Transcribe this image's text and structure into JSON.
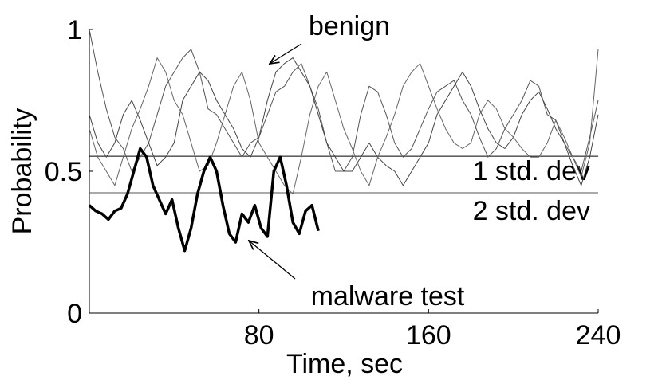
{
  "chart_data": {
    "type": "line",
    "x_label": "Time, sec",
    "y_label": "Probability",
    "xlim": [
      0,
      240
    ],
    "xticks": [
      80,
      160,
      240
    ],
    "ylim": [
      0,
      1
    ],
    "yticks": [
      0,
      0.5,
      1
    ],
    "series": [
      {
        "color": "#555555",
        "line_width": 1,
        "x": [
          0,
          4,
          8,
          12,
          16,
          20,
          24,
          28,
          32,
          36,
          40,
          44,
          48,
          52,
          56,
          60,
          64,
          68,
          72,
          76,
          80,
          84,
          88,
          92,
          96,
          100,
          104,
          108,
          112,
          116,
          120,
          124,
          128,
          132,
          136,
          140,
          144,
          148,
          152,
          156,
          160,
          164,
          168,
          172,
          176,
          180,
          184,
          188,
          192,
          196,
          200,
          204,
          208,
          212,
          216,
          220,
          224,
          228,
          232,
          236,
          240
        ],
        "values": [
          1.0,
          0.85,
          0.72,
          0.62,
          0.58,
          0.5,
          0.55,
          0.6,
          0.7,
          0.8,
          0.85,
          0.9,
          0.93,
          0.85,
          0.72,
          0.7,
          0.65,
          0.6,
          0.55,
          0.6,
          0.62,
          0.7,
          0.78,
          0.8,
          0.85,
          0.88,
          0.8,
          0.72,
          0.6,
          0.5,
          0.5,
          0.55,
          0.7,
          0.8,
          0.78,
          0.7,
          0.6,
          0.55,
          0.58,
          0.65,
          0.72,
          0.78,
          0.8,
          0.82,
          0.75,
          0.7,
          0.62,
          0.55,
          0.58,
          0.65,
          0.7,
          0.75,
          0.82,
          0.8,
          0.7,
          0.68,
          0.6,
          0.55,
          0.5,
          0.62,
          0.75
        ]
      },
      {
        "color": "#444444",
        "line_width": 1,
        "x": [
          0,
          4,
          8,
          12,
          16,
          20,
          24,
          28,
          32,
          36,
          40,
          44,
          48,
          52,
          56,
          60,
          64,
          68,
          72,
          76,
          80,
          84,
          88,
          92,
          96,
          100,
          104,
          108,
          112,
          116,
          120,
          124,
          128,
          132,
          136,
          140,
          144,
          148,
          152,
          156,
          160,
          164,
          168,
          172,
          176,
          180,
          184,
          188,
          192,
          196,
          200,
          204,
          208,
          212,
          216,
          220,
          224,
          228,
          232,
          236,
          240
        ],
        "values": [
          0.7,
          0.6,
          0.55,
          0.6,
          0.7,
          0.75,
          0.68,
          0.6,
          0.52,
          0.55,
          0.6,
          0.75,
          0.8,
          0.85,
          0.82,
          0.75,
          0.7,
          0.65,
          0.58,
          0.55,
          0.62,
          0.75,
          0.85,
          0.88,
          0.9,
          0.85,
          0.8,
          0.7,
          0.6,
          0.55,
          0.5,
          0.5,
          0.55,
          0.6,
          0.55,
          0.52,
          0.5,
          0.45,
          0.5,
          0.55,
          0.6,
          0.7,
          0.75,
          0.8,
          0.85,
          0.8,
          0.72,
          0.65,
          0.6,
          0.58,
          0.62,
          0.7,
          0.75,
          0.78,
          0.72,
          0.65,
          0.6,
          0.52,
          0.45,
          0.55,
          0.7
        ]
      },
      {
        "color": "#666666",
        "line_width": 1,
        "x": [
          0,
          4,
          8,
          12,
          16,
          20,
          24,
          28,
          32,
          36,
          40,
          44,
          48,
          52,
          56,
          60,
          64,
          68,
          72,
          76,
          80,
          84,
          88,
          92,
          96,
          100,
          104,
          108,
          112,
          116,
          120,
          124,
          128,
          132,
          136,
          140,
          144,
          148,
          152,
          156,
          160,
          164,
          168,
          172,
          176,
          180,
          184,
          188,
          192,
          196,
          200,
          204,
          208,
          212,
          216,
          220,
          224,
          228,
          232,
          236,
          240
        ],
        "values": [
          0.65,
          0.55,
          0.5,
          0.45,
          0.55,
          0.65,
          0.72,
          0.8,
          0.9,
          0.85,
          0.75,
          0.7,
          0.6,
          0.5,
          0.52,
          0.6,
          0.7,
          0.8,
          0.85,
          0.75,
          0.6,
          0.55,
          0.5,
          0.45,
          0.42,
          0.55,
          0.7,
          0.8,
          0.85,
          0.75,
          0.65,
          0.58,
          0.5,
          0.45,
          0.55,
          0.62,
          0.7,
          0.8,
          0.85,
          0.88,
          0.8,
          0.72,
          0.65,
          0.6,
          0.58,
          0.6,
          0.7,
          0.75,
          0.72,
          0.65,
          0.62,
          0.58,
          0.55,
          0.55,
          0.6,
          0.68,
          0.62,
          0.55,
          0.48,
          0.6,
          0.93
        ]
      },
      {
        "color": "#000000",
        "line_width": 3.5,
        "x": [
          0,
          3,
          6,
          9,
          12,
          15,
          18,
          21,
          24,
          27,
          30,
          33,
          36,
          39,
          42,
          45,
          48,
          51,
          54,
          57,
          60,
          63,
          66,
          69,
          72,
          75,
          78,
          81,
          84,
          87,
          90,
          93,
          96,
          99,
          102,
          105,
          108
        ],
        "values": [
          0.38,
          0.36,
          0.35,
          0.33,
          0.36,
          0.37,
          0.42,
          0.5,
          0.58,
          0.55,
          0.45,
          0.4,
          0.35,
          0.4,
          0.3,
          0.22,
          0.3,
          0.42,
          0.5,
          0.55,
          0.5,
          0.38,
          0.28,
          0.25,
          0.35,
          0.32,
          0.38,
          0.3,
          0.27,
          0.5,
          0.55,
          0.45,
          0.32,
          0.28,
          0.36,
          0.38,
          0.29
        ]
      }
    ],
    "reference_lines": [
      {
        "value": 0.553,
        "label": "1 std. dev",
        "color": "#000000"
      },
      {
        "value": 0.424,
        "label": "2 std. dev",
        "color": "#555555"
      }
    ],
    "annotations": [
      {
        "text": "benign"
      },
      {
        "text": "malware test"
      }
    ]
  }
}
